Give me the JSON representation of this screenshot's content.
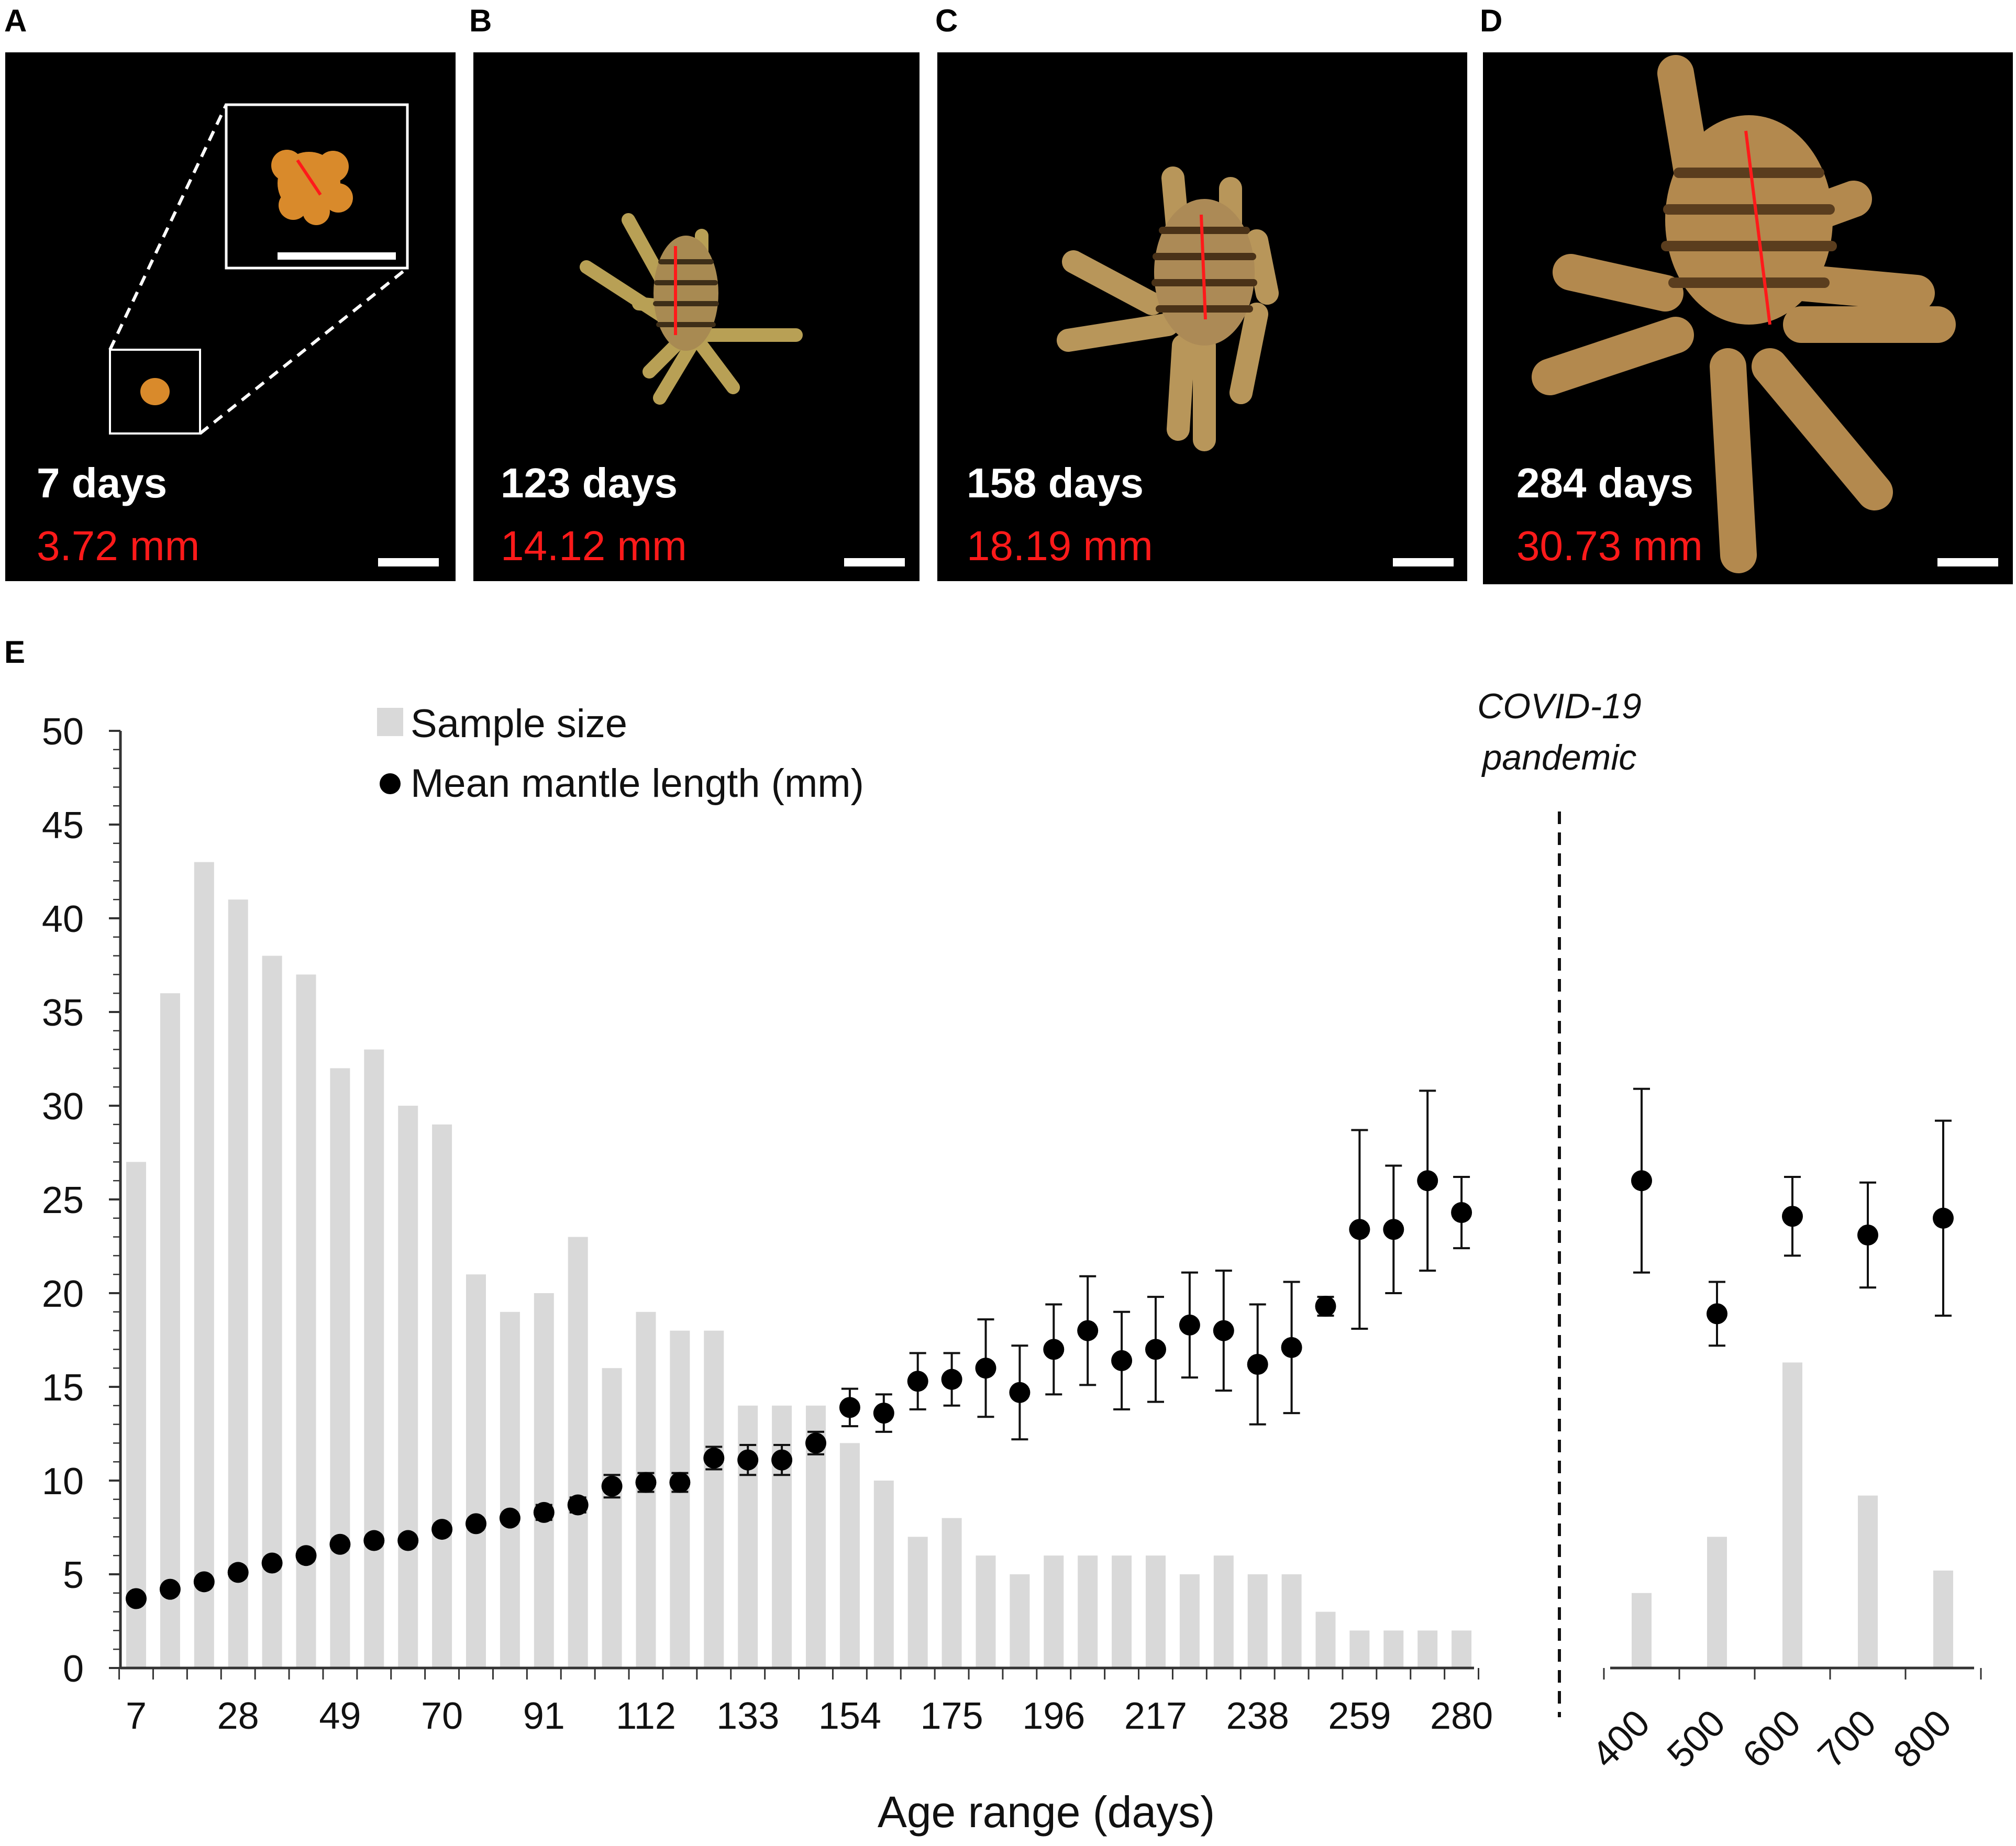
{
  "panels": [
    {
      "letter": "A",
      "age": "7 days",
      "length": "3.72 mm"
    },
    {
      "letter": "B",
      "age": "123 days",
      "length": "14.12 mm"
    },
    {
      "letter": "C",
      "age": "158 days",
      "length": "18.19 mm"
    },
    {
      "letter": "D",
      "age": "284 days",
      "length": "30.73 mm"
    }
  ],
  "colors": {
    "bar": "#d9d9d9",
    "point": "#000000",
    "photo_bg": "#000000",
    "measure_line": "#ff1a1a",
    "octopus_body": "#b3894e",
    "octopus_stripe": "#5a3d1e",
    "larva": "#d98a2b"
  },
  "chart_data": {
    "panel_letter": "E",
    "type": "bar",
    "xlabel": "Age range (days)",
    "ylabel": "",
    "ylim": [
      0,
      50
    ],
    "yticks": [
      "0",
      "5",
      "10",
      "15",
      "20",
      "25",
      "30",
      "35",
      "40",
      "45",
      "50"
    ],
    "main_tick_labels": [
      "7",
      "28",
      "49",
      "70",
      "91",
      "112",
      "133",
      "154",
      "175",
      "196",
      "217",
      "238",
      "259",
      "280"
    ],
    "later_tick_labels": [
      "400",
      "500",
      "600",
      "700",
      "800"
    ],
    "annotation": [
      "COVID-19",
      "pandemic"
    ],
    "legend": {
      "bars": "Sample size",
      "points": "Mean mantle length (mm)",
      "position": "top-left"
    },
    "series": [
      {
        "name": "Sample size",
        "type": "bar",
        "main": [
          27,
          36,
          43,
          41,
          38,
          37,
          32,
          33,
          30,
          29,
          21,
          19,
          20,
          23,
          16,
          19,
          18,
          18,
          14,
          14,
          14,
          12,
          10,
          7,
          8,
          6,
          5,
          6,
          6,
          6,
          6,
          5,
          6,
          5,
          5,
          3,
          2,
          2,
          2,
          2
        ],
        "later": [
          4,
          7,
          16.3,
          9.2,
          5.2
        ]
      },
      {
        "name": "Mean mantle length (mm)",
        "type": "scatter",
        "main_mean": [
          3.7,
          4.2,
          4.6,
          5.1,
          5.6,
          6.0,
          6.6,
          6.8,
          6.8,
          7.4,
          7.7,
          8.0,
          8.3,
          8.7,
          9.7,
          9.9,
          9.9,
          11.2,
          11.1,
          11.1,
          12.0,
          13.9,
          13.6,
          15.3,
          15.4,
          16.0,
          14.7,
          17.0,
          18.0,
          16.4,
          17.0,
          18.3,
          18.0,
          16.2,
          17.1,
          19.3,
          23.4,
          23.4,
          26.0,
          24.3
        ],
        "main_err": [
          0.2,
          0.2,
          0.2,
          0.3,
          0.3,
          0.3,
          0.3,
          0.3,
          0.3,
          0.3,
          0.3,
          0.3,
          0.4,
          0.4,
          0.6,
          0.5,
          0.5,
          0.6,
          0.8,
          0.8,
          0.6,
          1.0,
          1.0,
          1.5,
          1.4,
          2.6,
          2.5,
          2.4,
          2.9,
          2.6,
          2.8,
          2.8,
          3.2,
          3.2,
          3.5,
          0.5,
          5.3,
          3.4,
          4.8,
          1.9
        ],
        "later_mean": [
          26.0,
          18.9,
          24.1,
          23.1,
          24.0
        ],
        "later_err": [
          4.9,
          1.7,
          2.1,
          2.8,
          5.2
        ]
      }
    ]
  }
}
